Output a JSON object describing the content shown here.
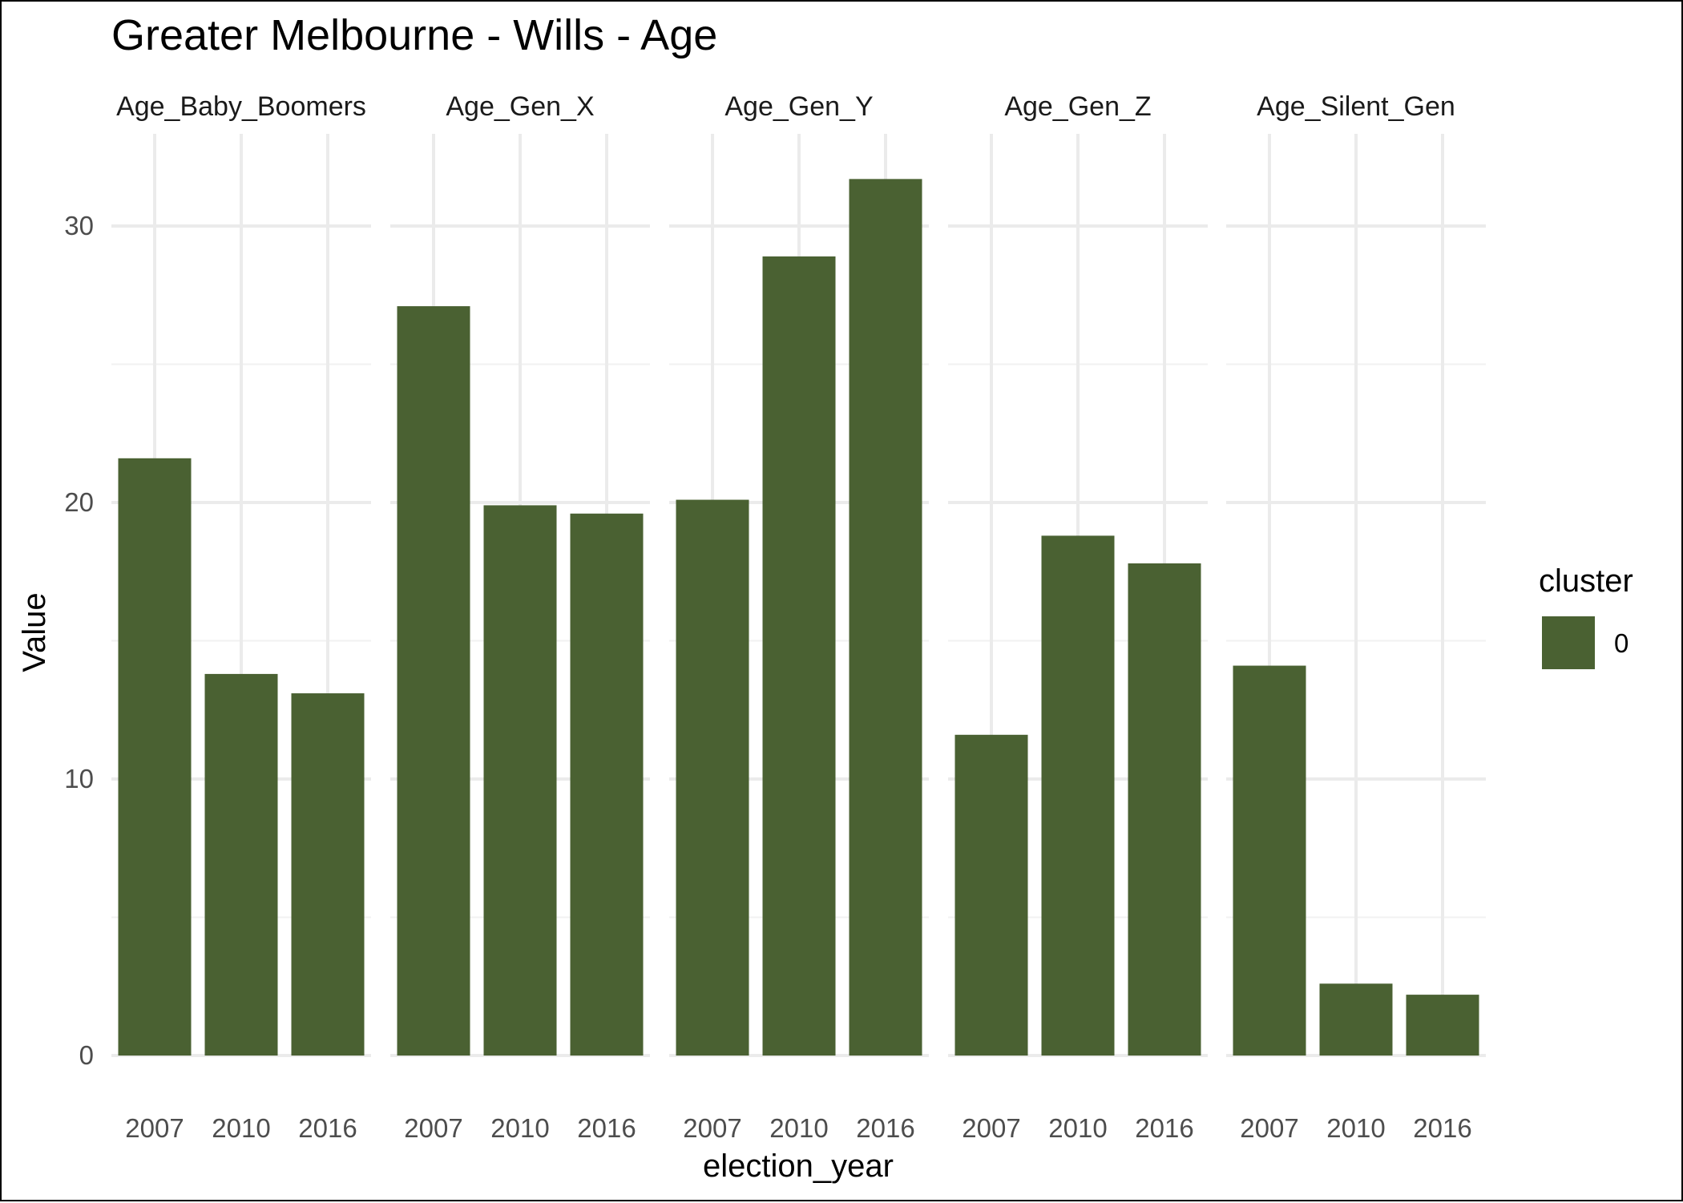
{
  "chart_data": {
    "type": "bar",
    "title": "Greater Melbourne - Wills - Age",
    "xlabel": "election_year",
    "ylabel": "Value",
    "ylim": [
      0,
      32
    ],
    "yticks": [
      0,
      10,
      20,
      30
    ],
    "categories": [
      "2007",
      "2010",
      "2016"
    ],
    "facets": [
      {
        "name": "Age_Baby_Boomers",
        "values": [
          21.6,
          13.8,
          13.1
        ]
      },
      {
        "name": "Age_Gen_X",
        "values": [
          27.1,
          19.9,
          19.6
        ]
      },
      {
        "name": "Age_Gen_Y",
        "values": [
          20.1,
          28.9,
          31.7
        ]
      },
      {
        "name": "Age_Gen_Z",
        "values": [
          11.6,
          18.8,
          17.8
        ]
      },
      {
        "name": "Age_Silent_Gen",
        "values": [
          14.1,
          2.6,
          2.2
        ]
      }
    ],
    "grid": true,
    "legend": {
      "title": "cluster",
      "entries": [
        {
          "label": "0",
          "color": "#4a6132"
        }
      ],
      "position": "right"
    }
  }
}
